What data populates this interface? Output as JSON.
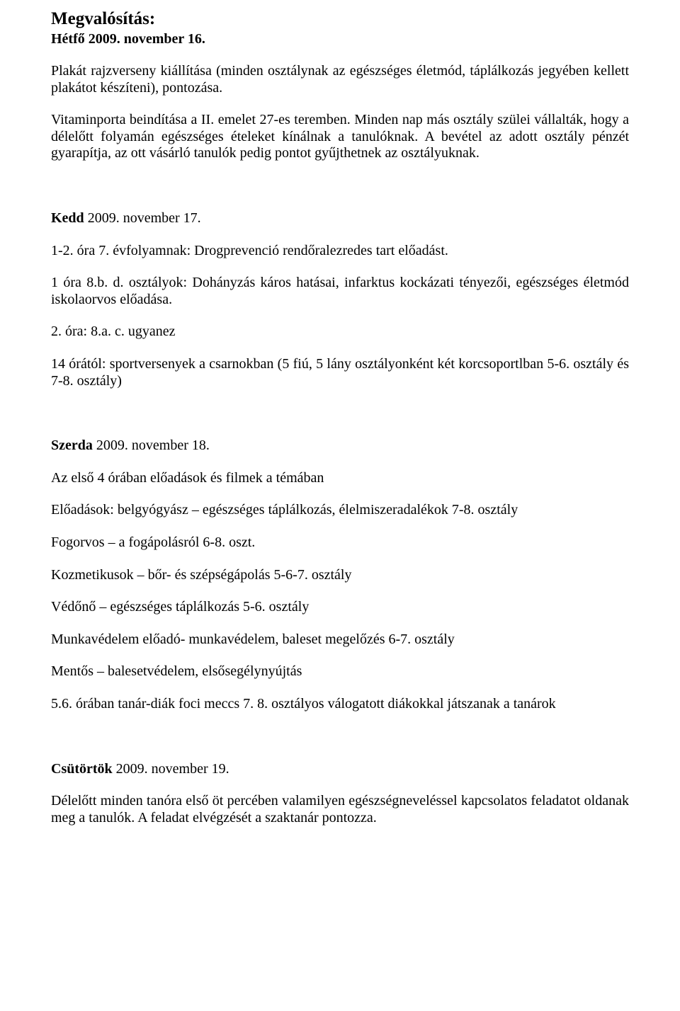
{
  "doc": {
    "h1": "Megvalósítás:",
    "line_hetfo": "Hétfő 2009. november 16.",
    "p1": "Plakát rajzverseny kiállítása (minden osztálynak az egészséges életmód, táplálkozás jegyében kellett plakátot készíteni), pontozása.",
    "p2": "Vitaminporta beindítása a II. emelet 27-es teremben. Minden nap más osztály szülei vállalták, hogy a délelőtt folyamán egészséges ételeket kínálnak a tanulóknak. A bevétel az adott osztály pénzét gyarapítja, az ott vásárló tanulók pedig pontot gyűjthetnek az osztályuknak.",
    "kedd_bold": "Kedd",
    "kedd_rest": " 2009. november 17.",
    "p3": "1-2. óra 7. évfolyamnak: Drogprevenció rendőralezredes tart előadást.",
    "p4": "1 óra 8.b. d. osztályok: Dohányzás káros hatásai, infarktus kockázati tényezői, egészséges életmód iskolaorvos előadása.",
    "p5": "2. óra: 8.a. c. ugyanez",
    "p6": "14 órától: sportversenyek a csarnokban (5 fiú, 5 lány osztályonként két korcsoportlban 5-6. osztály és 7-8. osztály)",
    "szerda_bold": "Szerda",
    "szerda_rest": " 2009. november 18.",
    "p7": "Az első 4 órában előadások és filmek a témában",
    "p8": "Előadások: belgyógyász – egészséges táplálkozás, élelmiszeradalékok 7-8. osztály",
    "p9": "Fogorvos – a fogápolásról 6-8. oszt.",
    "p10": "Kozmetikusok – bőr- és szépségápolás 5-6-7. osztály",
    "p11": "Védőnő – egészséges táplálkozás 5-6. osztály",
    "p12": "Munkavédelem előadó- munkavédelem, baleset megelőzés 6-7. osztály",
    "p13": "Mentős – balesetvédelem, elsősegélynyújtás",
    "p14": "5.6. órában tanár-diák foci meccs 7. 8. osztályos válogatott diákokkal játszanak a tanárok",
    "csut_bold": "Csütörtök",
    "csut_rest": " 2009. november 19.",
    "p15": "Délelőtt minden tanóra első öt percében valamilyen egészségneveléssel kapcsolatos feladatot oldanak meg a tanulók. A feladat elvégzését a szaktanár pontozza."
  }
}
